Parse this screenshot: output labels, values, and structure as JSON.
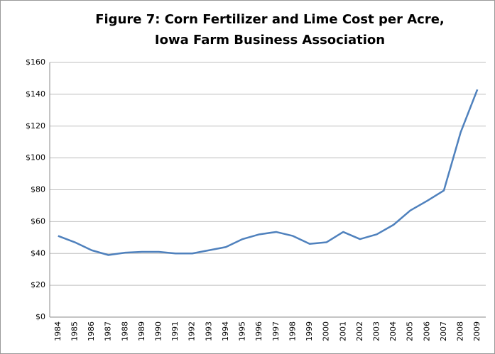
{
  "chart_data": {
    "type": "line",
    "title": [
      "Figure 7: Corn Fertilizer and Lime Cost per Acre,",
      "Iowa Farm Business Association"
    ],
    "categories": [
      "1984",
      "1985",
      "1986",
      "1987",
      "1988",
      "1989",
      "1990",
      "1991",
      "1992",
      "1993",
      "1994",
      "1995",
      "1996",
      "1997",
      "1998",
      "1999",
      "2000",
      "2001",
      "2002",
      "2003",
      "2004",
      "2005",
      "2006",
      "2007",
      "2008",
      "2009"
    ],
    "series": [
      {
        "color": "#4f81bd",
        "values": [
          51,
          47,
          42,
          39,
          40.5,
          41,
          41,
          40,
          40,
          42,
          44,
          49,
          52,
          53.5,
          51,
          46,
          47,
          53.5,
          49,
          52,
          58,
          67,
          73,
          79.5,
          116,
          143
        ]
      }
    ],
    "ylim": [
      0,
      160
    ],
    "yticks": [
      {
        "value": 0,
        "label": "$0"
      },
      {
        "value": 20,
        "label": "$20"
      },
      {
        "value": 40,
        "label": "$40"
      },
      {
        "value": 60,
        "label": "$60"
      },
      {
        "value": 80,
        "label": "$80"
      },
      {
        "value": 100,
        "label": "$100"
      },
      {
        "value": 120,
        "label": "$120"
      },
      {
        "value": 140,
        "label": "$140"
      },
      {
        "value": 160,
        "label": "$160"
      }
    ],
    "grid": true
  }
}
